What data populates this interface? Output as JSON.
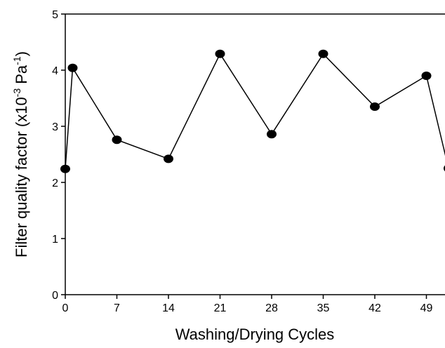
{
  "chart_data": {
    "type": "line",
    "xlabel": "Washing/Drying Cycles",
    "ylabel": [
      "Filter quality factor (x10",
      "-3",
      " Pa",
      "-1",
      ")"
    ],
    "x": [
      0,
      1,
      7,
      14,
      21,
      28,
      35,
      42,
      49,
      52
    ],
    "series": [
      {
        "color": "#000000",
        "values": [
          2.24,
          4.04,
          2.76,
          2.42,
          4.29,
          2.86,
          4.29,
          3.35,
          3.9,
          2.25
        ]
      }
    ],
    "xlim": [
      0,
      51.5
    ],
    "xticks": [
      0,
      7,
      14,
      21,
      28,
      35,
      42,
      49
    ],
    "ylim": [
      0,
      5
    ],
    "yticks": [
      0,
      1,
      2,
      3,
      4,
      5
    ]
  }
}
